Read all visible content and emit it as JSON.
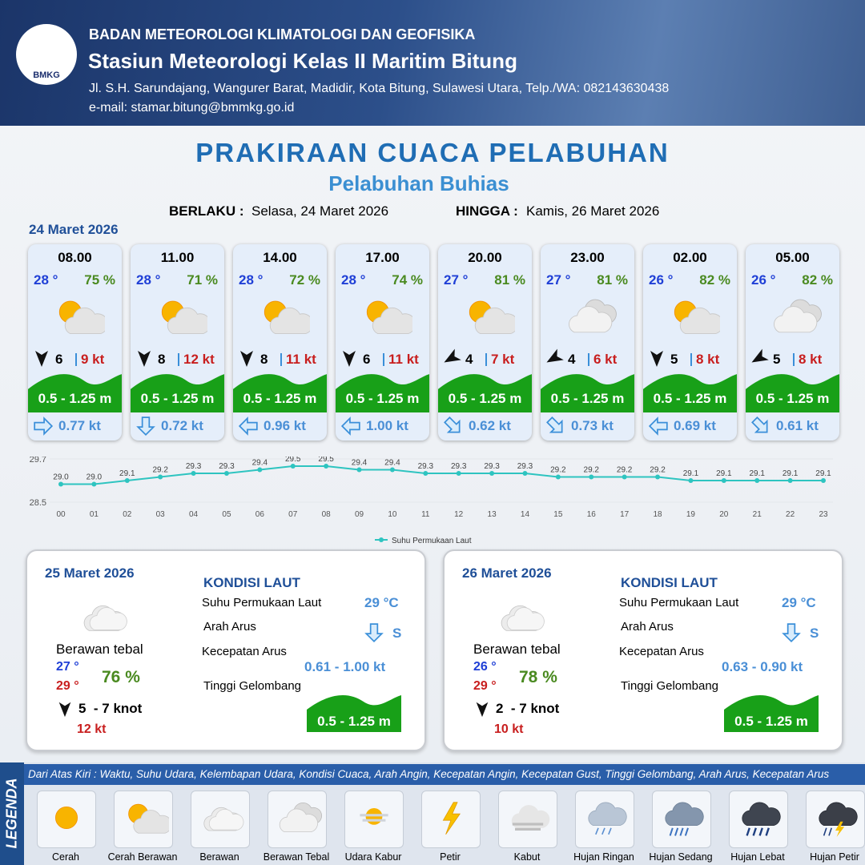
{
  "header": {
    "logo_text": "BMKG",
    "agency": "BADAN METEOROLOGI KLIMATOLOGI DAN GEOFISIKA",
    "station": "Stasiun Meteorologi Kelas II Maritim Bitung",
    "address": "Jl. S.H. Sarundajang, Wangurer Barat, Madidir, Kota Bitung, Sulawesi Utara, Telp./WA: 082143630438",
    "email": "e-mail: stamar.bitung@bmmkg.go.id"
  },
  "title": "PRAKIRAAN CUACA PELABUHAN",
  "subtitle": "Pelabuhan Buhias",
  "validity": {
    "from_label": "BERLAKU :",
    "from": "Selasa, 24 Maret 2026",
    "to_label": "HINGGA :",
    "to": "Kamis, 26 Maret 2026"
  },
  "day1": {
    "date": "24 Maret 2026",
    "cards": [
      {
        "time": "08.00",
        "temp": "28 °",
        "humidity": "75 %",
        "wind": "6",
        "gust": "9 kt",
        "wave": "0.5 - 1.25 m",
        "current": "0.77 kt"
      },
      {
        "time": "11.00",
        "temp": "28 °",
        "humidity": "71 %",
        "wind": "8",
        "gust": "12 kt",
        "wave": "0.5 - 1.25 m",
        "current": "0.72 kt"
      },
      {
        "time": "14.00",
        "temp": "28 °",
        "humidity": "72 %",
        "wind": "8",
        "gust": "11 kt",
        "wave": "0.5 - 1.25 m",
        "current": "0.96 kt"
      },
      {
        "time": "17.00",
        "temp": "28 °",
        "humidity": "74 %",
        "wind": "6",
        "gust": "11 kt",
        "wave": "0.5 - 1.25 m",
        "current": "1.00 kt"
      },
      {
        "time": "20.00",
        "temp": "27 °",
        "humidity": "81 %",
        "wind": "4",
        "gust": "7 kt",
        "wave": "0.5 - 1.25 m",
        "current": "0.62 kt"
      },
      {
        "time": "23.00",
        "temp": "27 °",
        "humidity": "81 %",
        "wind": "4",
        "gust": "6 kt",
        "wave": "0.5 - 1.25 m",
        "current": "0.73 kt"
      },
      {
        "time": "02.00",
        "temp": "26 °",
        "humidity": "82 %",
        "wind": "5",
        "gust": "8 kt",
        "wave": "0.5 - 1.25 m",
        "current": "0.69 kt"
      },
      {
        "time": "05.00",
        "temp": "26 °",
        "humidity": "82 %",
        "wind": "5",
        "gust": "8 kt",
        "wave": "0.5 - 1.25 m",
        "current": "0.61 kt"
      }
    ]
  },
  "chart_data": {
    "type": "line",
    "categories": [
      "00",
      "01",
      "02",
      "03",
      "04",
      "05",
      "06",
      "07",
      "08",
      "09",
      "10",
      "11",
      "12",
      "13",
      "14",
      "15",
      "16",
      "17",
      "18",
      "19",
      "20",
      "21",
      "22",
      "23"
    ],
    "series": [
      {
        "name": "Suhu Permukaan Laut",
        "color": "#2ec4c0",
        "values": [
          29.0,
          29.0,
          29.1,
          29.2,
          29.3,
          29.3,
          29.4,
          29.5,
          29.5,
          29.4,
          29.4,
          29.3,
          29.3,
          29.3,
          29.3,
          29.2,
          29.2,
          29.2,
          29.2,
          29.1,
          29.1,
          29.1,
          29.1,
          29.1
        ],
        "value_labels": [
          "29.0",
          "29.0",
          "29.1",
          "29.2",
          "29.3",
          "29.3",
          "29.4",
          "29.5",
          "29.5",
          "29.4",
          "29.4",
          "29.3",
          "29.3",
          "29.3",
          "29.3",
          "29.2",
          "29.2",
          "29.2",
          "29.2",
          "29.1",
          "29.1",
          "29.1",
          "29.1",
          "29.1"
        ]
      }
    ],
    "ylim": [
      28.5,
      29.7
    ],
    "yticks": [
      28.5,
      29.7
    ],
    "grid": true
  },
  "days": [
    {
      "date": "25 Maret 2026",
      "kondisi_label": "KONDISI LAUT",
      "sst_label": "Suhu Permukaan Laut",
      "sst": "29 °C",
      "current_dir_label": "Arah Arus",
      "current_dir": "S",
      "current_speed_label": "Kecepatan Arus",
      "current_speed": "0.61 - 1.00 kt",
      "wave_label": "Tinggi Gelombang",
      "wave": "0.5 - 1.25 m",
      "weather": "Berawan tebal",
      "temp_min": "27 °",
      "temp_max": "29 °",
      "humidity": "76 %",
      "wind": "5  - 7 knot",
      "gust": "12 kt"
    },
    {
      "date": "26 Maret 2026",
      "kondisi_label": "KONDISI LAUT",
      "sst_label": "Suhu Permukaan Laut",
      "sst": "29 °C",
      "current_dir_label": "Arah Arus",
      "current_dir": "S",
      "current_speed_label": "Kecepatan Arus",
      "current_speed": "0.63 - 0.90 kt",
      "wave_label": "Tinggi Gelombang",
      "wave": "0.5 - 1.25 m",
      "weather": "Berawan tebal",
      "temp_min": "26 °",
      "temp_max": "29 °",
      "humidity": "78 %",
      "wind": "2  - 7 knot",
      "gust": "10 kt"
    }
  ],
  "legend": {
    "title": "LEGENDA",
    "description": "Dari Atas Kiri : Waktu, Suhu Udara, Kelembapan Udara, Kondisi Cuaca, Arah Angin, Kecepatan Angin, Kecepatan Gust, Tinggi Gelombang, Arah Arus, Kecepatan Arus",
    "items": [
      "Cerah",
      "Cerah Berawan",
      "Berawan",
      "Berawan Tebal",
      "Udara Kabur",
      "Petir",
      "Kabut",
      "Hujan Ringan",
      "Hujan Sedang",
      "Hujan Lebat",
      "Hujan Petir"
    ]
  }
}
